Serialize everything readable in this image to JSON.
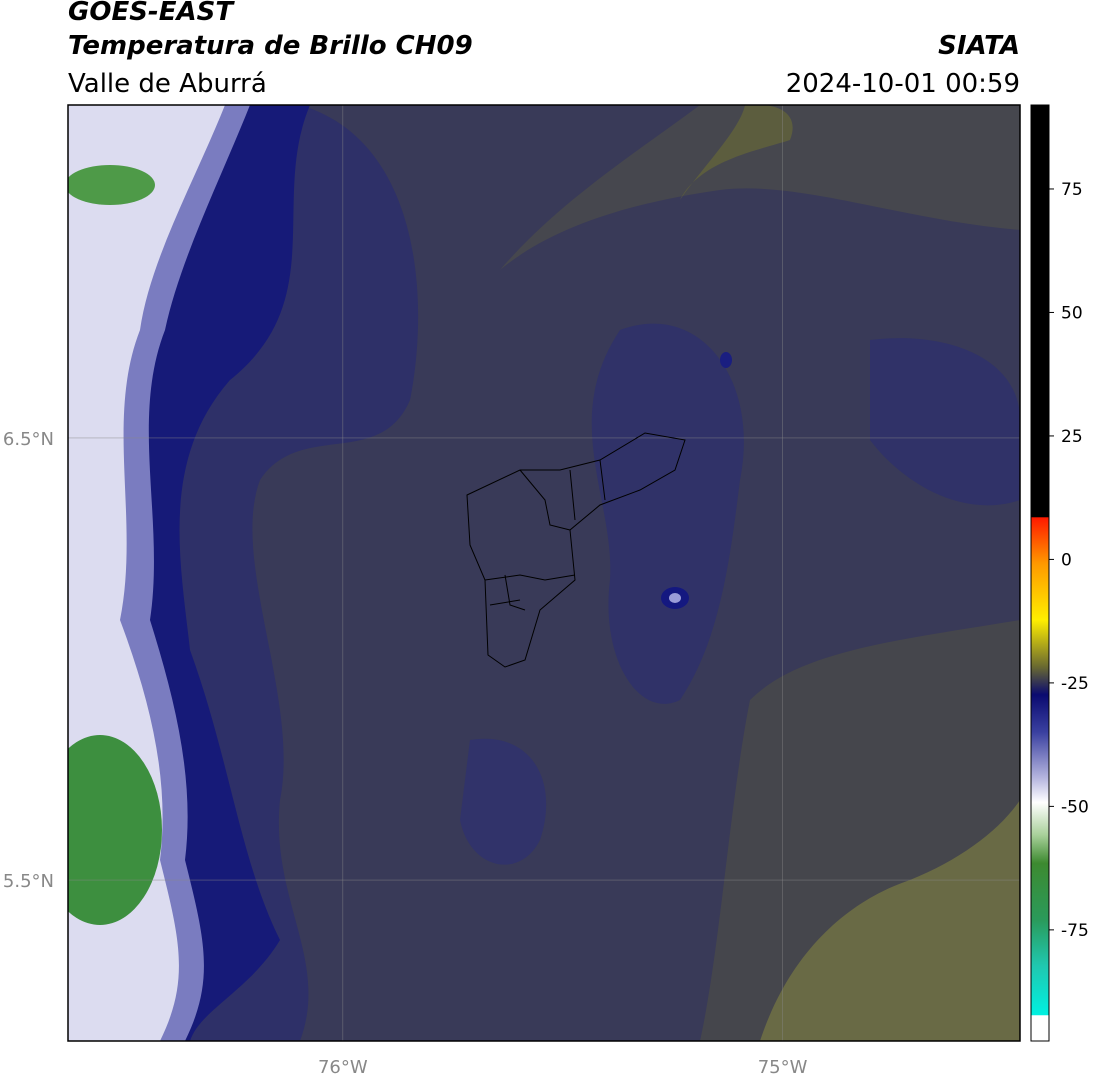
{
  "header": {
    "title": "GOES-EAST",
    "subtitle": "Temperatura de Brillo CH09",
    "region": "Valle de Aburrá",
    "source": "SIATA",
    "datetime": "2024-10-01 00:59"
  },
  "map": {
    "xlim": [
      -76.625,
      -74.46
    ],
    "ylim": [
      5.136,
      7.253
    ],
    "xticks": [
      {
        "value": -76,
        "label": "76°W"
      },
      {
        "value": -75,
        "label": "75°W"
      }
    ],
    "yticks": [
      {
        "value": 6.5,
        "label": "6.5°N"
      },
      {
        "value": 5.5,
        "label": "5.5°N"
      }
    ],
    "grid": true
  },
  "colorbar": {
    "lim": [
      -97.5,
      92
    ],
    "ticks": [
      75,
      50,
      25,
      0,
      -25,
      -50,
      -75
    ]
  }
}
